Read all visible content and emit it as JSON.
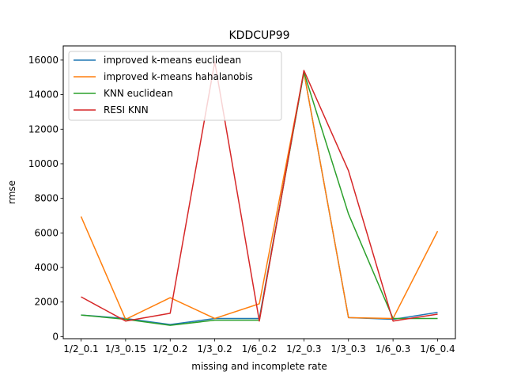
{
  "chart_data": {
    "type": "line",
    "title": "KDDCUP99",
    "xlabel": "missing and incomplete rate",
    "ylabel": "rmse",
    "categories": [
      "1/2_0.1",
      "1/3_0.15",
      "1/2_0.2",
      "1/3_0.2",
      "1/6_0.2",
      "1/2_0.3",
      "1/3_0.3",
      "1/6_0.3",
      "1/6_0.4"
    ],
    "ylim": [
      -120,
      16820
    ],
    "yticks": [
      0,
      2000,
      4000,
      6000,
      8000,
      10000,
      12000,
      14000,
      16000
    ],
    "grid": false,
    "legend_position": "upper-left",
    "series": [
      {
        "name": "improved k-means euclidean",
        "color": "#1f77b4",
        "values": [
          1250,
          1050,
          700,
          1050,
          1050,
          15300,
          1100,
          1000,
          1400
        ]
      },
      {
        "name": "improved k-means hahalanobis",
        "color": "#ff7f0e",
        "values": [
          6950,
          1000,
          2250,
          1050,
          1900,
          15300,
          1100,
          1050,
          6100
        ]
      },
      {
        "name": "KNN euclidean",
        "color": "#2ca02c",
        "values": [
          1250,
          1000,
          650,
          950,
          950,
          15300,
          7100,
          1050,
          1050
        ]
      },
      {
        "name": "RESI KNN",
        "color": "#d62728",
        "values": [
          2300,
          900,
          1350,
          15900,
          900,
          15400,
          9600,
          900,
          1300
        ]
      }
    ]
  }
}
